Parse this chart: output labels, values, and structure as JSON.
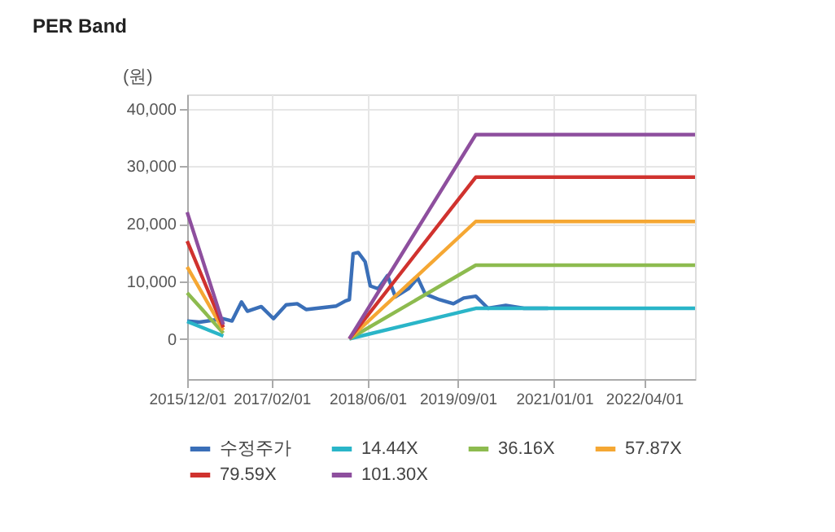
{
  "chart_data": {
    "type": "line",
    "title": "PER Band",
    "ylabel": "(원)",
    "xlim": [
      "2015-12-01",
      "2022-12-15"
    ],
    "xticks": [
      {
        "value": "2015-12-01",
        "label": "2015/12/01"
      },
      {
        "value": "2017-02-01",
        "label": "2017/02/01"
      },
      {
        "value": "2018-06-01",
        "label": "2018/06/01"
      },
      {
        "value": "2019-09-01",
        "label": "2019/09/01"
      },
      {
        "value": "2021-01-01",
        "label": "2021/01/01"
      },
      {
        "value": "2022-04-01",
        "label": "2022/04/01"
      }
    ],
    "ylim": [
      -7000,
      42500
    ],
    "yticks": [
      {
        "value": 0,
        "label": "0"
      },
      {
        "value": 10000,
        "label": "10,000"
      },
      {
        "value": 20000,
        "label": "20,000"
      },
      {
        "value": 30000,
        "label": "30,000"
      },
      {
        "value": 40000,
        "label": "40,000"
      }
    ],
    "grid": true,
    "legend": "bottom",
    "series": [
      {
        "name": "수정주가",
        "color": "#3a6fb8",
        "x": [
          "2015-12-01",
          "2016-02-01",
          "2016-06-01",
          "2016-07-15",
          "2016-09-01",
          "2016-10-01",
          "2016-12-10",
          "2017-02-10",
          "2017-04-15",
          "2017-06-10",
          "2017-07-25",
          "2017-12-25",
          "2018-02-10",
          "2018-03-01",
          "2018-03-20",
          "2018-04-15",
          "2018-05-20",
          "2018-06-15",
          "2018-07-25",
          "2018-09-10",
          "2018-10-20",
          "2018-12-25",
          "2019-02-10",
          "2019-03-20",
          "2019-06-01",
          "2019-08-10",
          "2019-10-01",
          "2019-12-01",
          "2020-02-01",
          "2020-05-01",
          "2020-08-01",
          "2020-12-01"
        ],
        "values": [
          3100,
          2900,
          3500,
          3100,
          6400,
          4800,
          5600,
          3500,
          5900,
          6100,
          5100,
          5700,
          6600,
          6800,
          14800,
          15000,
          13400,
          9200,
          8700,
          11000,
          7300,
          8700,
          10600,
          7800,
          6800,
          6100,
          7100,
          7400,
          5300,
          5800,
          5300,
          5300
        ]
      },
      {
        "name": "14.44X",
        "color": "#2ab5c8",
        "x": [
          "2015-12-01",
          "2016-06-01",
          "2017-04-01",
          "2018-03-01",
          "2019-12-01",
          "2022-12-15"
        ],
        "values": [
          3000,
          500,
          null,
          0,
          5300,
          5300
        ]
      },
      {
        "name": "36.16X",
        "color": "#8dbb4f",
        "x": [
          "2015-12-01",
          "2016-06-01",
          "2017-04-01",
          "2018-03-01",
          "2019-12-01",
          "2022-12-15"
        ],
        "values": [
          8000,
          1000,
          null,
          0,
          12800,
          12800
        ]
      },
      {
        "name": "57.87X",
        "color": "#f5a733",
        "x": [
          "2015-12-01",
          "2016-06-01",
          "2017-04-01",
          "2018-03-01",
          "2019-12-01",
          "2022-12-15"
        ],
        "values": [
          12500,
          1500,
          null,
          0,
          20400,
          20400
        ]
      },
      {
        "name": "79.59X",
        "color": "#d0322e",
        "x": [
          "2015-12-01",
          "2016-06-01",
          "2017-04-01",
          "2018-03-01",
          "2019-12-01",
          "2022-12-15"
        ],
        "values": [
          17000,
          2000,
          null,
          0,
          28100,
          28100
        ]
      },
      {
        "name": "101.30X",
        "color": "#8e4f9e",
        "x": [
          "2015-12-01",
          "2016-06-01",
          "2017-04-01",
          "2018-03-01",
          "2019-12-01",
          "2022-12-15"
        ],
        "values": [
          22000,
          2500,
          null,
          0,
          35500,
          35500
        ]
      }
    ]
  }
}
